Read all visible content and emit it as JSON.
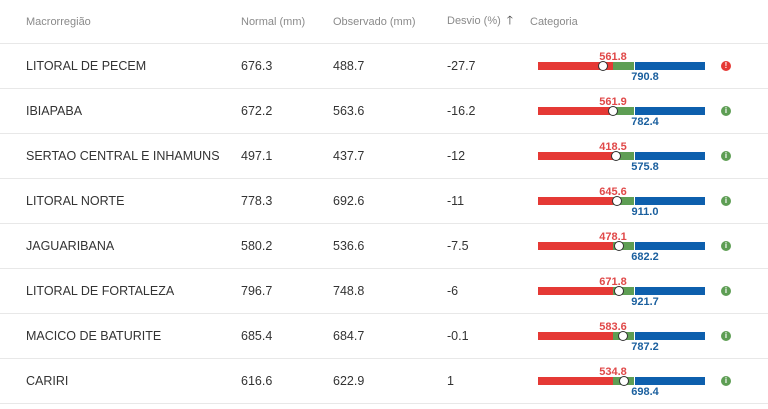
{
  "header": {
    "region": "Macrorregião",
    "normal": "Normal (mm)",
    "observed": "Observado (mm)",
    "deviation": "Desvio (%)",
    "sort_icon": "arrow-up-icon",
    "category": "Categoria"
  },
  "colors": {
    "below": "#e53935",
    "normal": "#5e9e54",
    "above": "#0d5fad",
    "warning": "#e53935",
    "info": "#5e9e54"
  },
  "rows": [
    {
      "region": "LITORAL DE PECEM",
      "normal": "676.3",
      "observed": "488.7",
      "deviation": "-27.7",
      "lower": "561.8",
      "upper": "790.8",
      "status": "warning",
      "glyph": "!"
    },
    {
      "region": "IBIAPABA",
      "normal": "672.2",
      "observed": "563.6",
      "deviation": "-16.2",
      "lower": "561.9",
      "upper": "782.4",
      "status": "info",
      "glyph": "i"
    },
    {
      "region": "SERTAO CENTRAL E INHAMUNS",
      "normal": "497.1",
      "observed": "437.7",
      "deviation": "-12",
      "lower": "418.5",
      "upper": "575.8",
      "status": "info",
      "glyph": "i"
    },
    {
      "region": "LITORAL NORTE",
      "normal": "778.3",
      "observed": "692.6",
      "deviation": "-11",
      "lower": "645.6",
      "upper": "911.0",
      "status": "info",
      "glyph": "i"
    },
    {
      "region": "JAGUARIBANA",
      "normal": "580.2",
      "observed": "536.6",
      "deviation": "-7.5",
      "lower": "478.1",
      "upper": "682.2",
      "status": "info",
      "glyph": "i"
    },
    {
      "region": "LITORAL DE FORTALEZA",
      "normal": "796.7",
      "observed": "748.8",
      "deviation": "-6",
      "lower": "671.8",
      "upper": "921.7",
      "status": "info",
      "glyph": "i"
    },
    {
      "region": "MACICO DE BATURITE",
      "normal": "685.4",
      "observed": "684.7",
      "deviation": "-0.1",
      "lower": "583.6",
      "upper": "787.2",
      "status": "info",
      "glyph": "i"
    },
    {
      "region": "CARIRI",
      "normal": "616.6",
      "observed": "622.9",
      "deviation": "1",
      "lower": "534.8",
      "upper": "698.4",
      "status": "info",
      "glyph": "i"
    }
  ]
}
